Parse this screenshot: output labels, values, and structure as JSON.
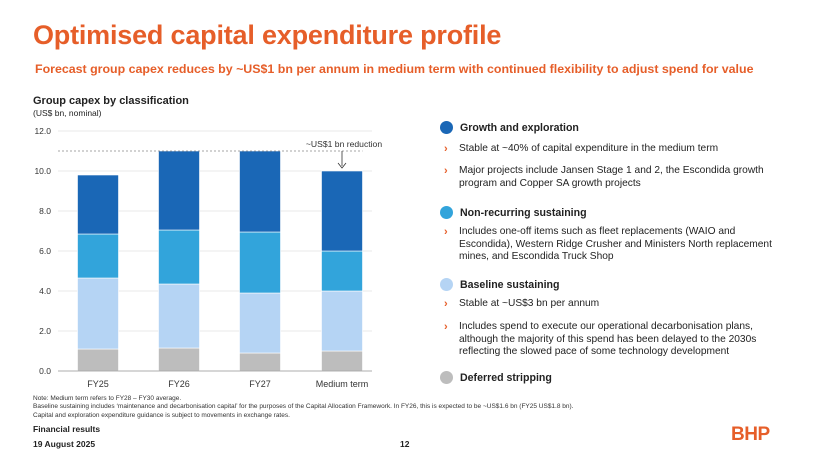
{
  "title": "Optimised capital expenditure profile",
  "subtitle": "Forecast group capex reduces by ~US$1 bn per annum in medium term with continued flexibility to adjust spend for value",
  "chart_data": {
    "type": "bar",
    "stacked": true,
    "title": "Group capex by classification",
    "units_label": "(US$ bn, nominal)",
    "xlabel": "",
    "ylabel": "",
    "ylim": [
      0,
      12
    ],
    "y_ticks": [
      0,
      2,
      4,
      6,
      8,
      10,
      12
    ],
    "y_tick_labels": [
      "0.0",
      "2.0",
      "4.0",
      "6.0",
      "8.0",
      "10.0",
      "12.0"
    ],
    "categories": [
      "FY25",
      "FY26",
      "FY27",
      "Medium term"
    ],
    "series": [
      {
        "name": "Deferred stripping",
        "color": "#BDBDBD",
        "values": [
          1.1,
          1.15,
          0.9,
          1.0
        ]
      },
      {
        "name": "Baseline sustaining",
        "color": "#B5D4F4",
        "values": [
          3.55,
          3.2,
          3.0,
          3.0
        ]
      },
      {
        "name": "Non-recurring sustaining",
        "color": "#32A4DB",
        "values": [
          2.2,
          2.7,
          3.05,
          2.0
        ]
      },
      {
        "name": "Growth and exploration",
        "color": "#1A67B6",
        "values": [
          2.95,
          3.95,
          4.05,
          4.0
        ]
      }
    ],
    "annotation": {
      "text": "~US$1 bn reduction",
      "reference_value": 11.0
    }
  },
  "legend": [
    {
      "label": "Growth and exploration",
      "color": "#1A67B6",
      "bullets": [
        [
          "Stable at ~40% of capital expenditure in the medium term"
        ],
        [
          "Major projects include Jansen Stage 1 and 2, the Escondida growth",
          "program and Copper SA growth projects"
        ]
      ]
    },
    {
      "label": "Non-recurring sustaining",
      "color": "#32A4DB",
      "bullets": [
        [
          "Includes one-off items such as fleet replacements (WAIO and",
          "Escondida), Western Ridge Crusher and Ministers North replacement",
          "mines, and Escondida Truck Shop"
        ]
      ]
    },
    {
      "label": "Baseline sustaining",
      "color": "#B5D4F4",
      "bullets": [
        [
          "Stable at ~US$3 bn per annum"
        ],
        [
          "Includes spend to execute our operational decarbonisation plans,",
          "although the majority of this spend has been delayed to the 2030s",
          "reflecting the slowed pace of some technology development"
        ]
      ]
    },
    {
      "label": "Deferred stripping",
      "color": "#BDBDBD",
      "bullets": []
    }
  ],
  "notes": [
    "Note: Medium term refers to FY28 – FY30 average.",
    "Baseline sustaining includes ‘maintenance and decarbonisation capital’ for the purposes of the Capital Allocation Framework. In FY26, this is expected to be ~US$1.6 bn (FY25 US$1.8 bn).",
    "Capital and exploration expenditure guidance is subject to movements in exchange rates."
  ],
  "footer": {
    "line1": "Financial results",
    "line2": "19 August 2025",
    "page": "12",
    "logo": "BHP"
  },
  "arrow_glyph": "›"
}
